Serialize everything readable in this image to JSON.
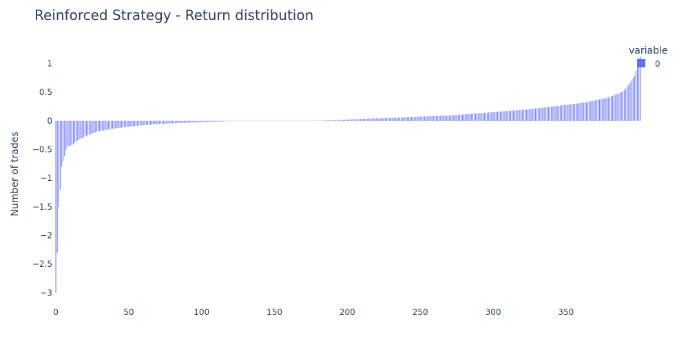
{
  "chart_data": {
    "type": "bar",
    "title": "Reinforced Strategy - Return distribution",
    "xlabel": "",
    "ylabel": "Number of trades",
    "xlim": [
      -0.5,
      385.5
    ],
    "ylim": [
      -3.05,
      1.15
    ],
    "x_ticks": [
      0,
      50,
      100,
      150,
      200,
      250,
      300,
      350
    ],
    "x_tick_labels": [
      "0",
      "50",
      "100",
      "150",
      "200",
      "250",
      "300",
      "350"
    ],
    "y_ticks": [
      1,
      0.5,
      0,
      -0.5,
      -1,
      -1.5,
      -2,
      -2.5,
      -3
    ],
    "y_tick_labels": [
      "1",
      "0.5",
      "0",
      "−0.5",
      "−1",
      "−1.5",
      "−2",
      "−2.5",
      "−3"
    ],
    "legend": {
      "title": "variable",
      "placement": "top-right"
    },
    "series": [
      {
        "name": "0",
        "color": "#636efa",
        "values": [
          -3.0,
          -2.3,
          -1.5,
          -1.2,
          -0.8,
          -0.7,
          -0.62,
          -0.5,
          -0.45,
          -0.44,
          -0.43,
          -0.42,
          -0.41,
          -0.38,
          -0.36,
          -0.34,
          -0.32,
          -0.31,
          -0.3,
          -0.29,
          -0.27,
          -0.26,
          -0.25,
          -0.24,
          -0.23,
          -0.22,
          -0.21,
          -0.2,
          -0.19,
          -0.185,
          -0.18,
          -0.175,
          -0.17,
          -0.165,
          -0.16,
          -0.155,
          -0.15,
          -0.146,
          -0.142,
          -0.138,
          -0.134,
          -0.13,
          -0.127,
          -0.124,
          -0.121,
          -0.118,
          -0.115,
          -0.112,
          -0.109,
          -0.106,
          -0.103,
          -0.1,
          -0.097,
          -0.094,
          -0.091,
          -0.088,
          -0.085,
          -0.082,
          -0.08,
          -0.078,
          -0.076,
          -0.074,
          -0.072,
          -0.07,
          -0.068,
          -0.066,
          -0.064,
          -0.062,
          -0.06,
          -0.058,
          -0.056,
          -0.054,
          -0.052,
          -0.05,
          -0.049,
          -0.048,
          -0.047,
          -0.046,
          -0.045,
          -0.044,
          -0.043,
          -0.042,
          -0.041,
          -0.04,
          -0.039,
          -0.038,
          -0.037,
          -0.036,
          -0.035,
          -0.034,
          -0.033,
          -0.032,
          -0.031,
          -0.03,
          -0.029,
          -0.028,
          -0.027,
          -0.026,
          -0.025,
          -0.024,
          -0.023,
          -0.022,
          -0.021,
          -0.02,
          -0.019,
          -0.018,
          -0.017,
          -0.016,
          -0.015,
          -0.014,
          -0.013,
          -0.012,
          -0.011,
          -0.01,
          -0.009,
          -0.008,
          -0.007,
          -0.006,
          -0.005,
          -0.004,
          -0.003,
          -0.002,
          -0.0015,
          -0.001,
          -0.0008,
          -0.0006,
          -0.0004,
          -0.0003,
          -0.0002,
          -0.0001,
          0,
          0,
          0,
          0,
          0,
          0,
          0,
          0,
          0,
          0,
          0,
          0,
          0,
          0,
          0,
          0,
          0,
          0,
          0,
          0,
          0,
          0,
          0,
          0,
          0,
          0,
          0,
          0,
          0,
          0,
          0,
          0,
          0,
          0,
          0,
          0,
          0,
          0,
          0,
          0,
          0,
          0,
          0,
          0,
          0.0002,
          0.0005,
          0.001,
          0.0015,
          0.002,
          0.003,
          0.004,
          0.005,
          0.006,
          0.007,
          0.008,
          0.009,
          0.01,
          0.011,
          0.012,
          0.013,
          0.014,
          0.015,
          0.016,
          0.017,
          0.018,
          0.019,
          0.02,
          0.021,
          0.022,
          0.023,
          0.024,
          0.025,
          0.026,
          0.027,
          0.028,
          0.029,
          0.03,
          0.031,
          0.032,
          0.033,
          0.034,
          0.035,
          0.036,
          0.037,
          0.038,
          0.039,
          0.04,
          0.041,
          0.042,
          0.043,
          0.044,
          0.045,
          0.046,
          0.047,
          0.048,
          0.049,
          0.05,
          0.051,
          0.052,
          0.053,
          0.054,
          0.055,
          0.056,
          0.057,
          0.058,
          0.059,
          0.06,
          0.061,
          0.062,
          0.063,
          0.064,
          0.065,
          0.066,
          0.067,
          0.068,
          0.069,
          0.07,
          0.071,
          0.072,
          0.073,
          0.074,
          0.075,
          0.076,
          0.077,
          0.078,
          0.079,
          0.08,
          0.081,
          0.082,
          0.083,
          0.084,
          0.085,
          0.086,
          0.087,
          0.088,
          0.089,
          0.09,
          0.091,
          0.092,
          0.093,
          0.094,
          0.095,
          0.097,
          0.099,
          0.101,
          0.103,
          0.105,
          0.107,
          0.109,
          0.111,
          0.113,
          0.115,
          0.117,
          0.119,
          0.121,
          0.123,
          0.125,
          0.127,
          0.129,
          0.131,
          0.133,
          0.135,
          0.137,
          0.139,
          0.141,
          0.143,
          0.145,
          0.147,
          0.149,
          0.151,
          0.153,
          0.155,
          0.157,
          0.159,
          0.161,
          0.163,
          0.165,
          0.167,
          0.169,
          0.171,
          0.173,
          0.175,
          0.177,
          0.179,
          0.181,
          0.183,
          0.185,
          0.187,
          0.189,
          0.191,
          0.193,
          0.195,
          0.197,
          0.199,
          0.201,
          0.204,
          0.207,
          0.21,
          0.213,
          0.216,
          0.219,
          0.222,
          0.225,
          0.228,
          0.231,
          0.234,
          0.237,
          0.24,
          0.243,
          0.246,
          0.249,
          0.252,
          0.255,
          0.258,
          0.261,
          0.264,
          0.267,
          0.27,
          0.273,
          0.276,
          0.279,
          0.282,
          0.285,
          0.288,
          0.291,
          0.294,
          0.297,
          0.3,
          0.303,
          0.306,
          0.31,
          0.315,
          0.32,
          0.325,
          0.33,
          0.335,
          0.34,
          0.345,
          0.35,
          0.355,
          0.36,
          0.365,
          0.37,
          0.375,
          0.38,
          0.385,
          0.39,
          0.395,
          0.4,
          0.41,
          0.42,
          0.43,
          0.44,
          0.45,
          0.46,
          0.47,
          0.48,
          0.49,
          0.5,
          0.52,
          0.54,
          0.57,
          0.6,
          0.63,
          0.67,
          0.71,
          0.75,
          0.8,
          0.88,
          1.07,
          1.1,
          1.12
        ]
      }
    ]
  }
}
